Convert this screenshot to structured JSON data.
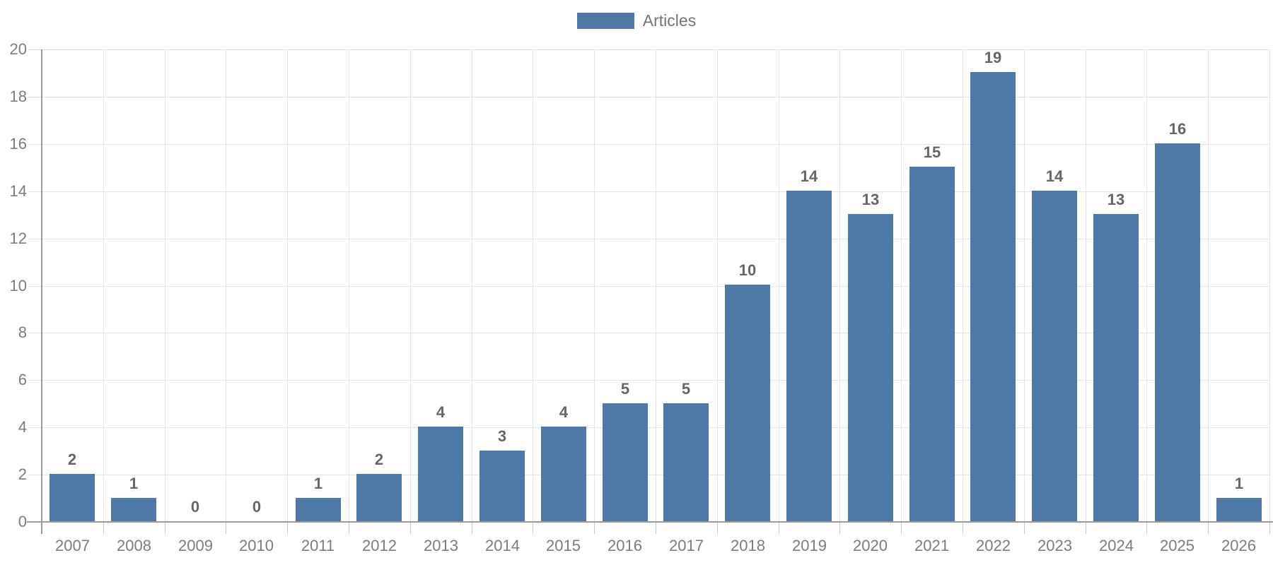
{
  "chart_data": {
    "type": "bar",
    "title": "",
    "categories": [
      "2007",
      "2008",
      "2009",
      "2010",
      "2011",
      "2012",
      "2013",
      "2014",
      "2015",
      "2016",
      "2017",
      "2018",
      "2019",
      "2020",
      "2021",
      "2022",
      "2023",
      "2024",
      "2025",
      "2026"
    ],
    "series": [
      {
        "name": "Articles",
        "color": "#4e79a7",
        "values": [
          2,
          1,
          0,
          0,
          1,
          2,
          4,
          3,
          4,
          5,
          5,
          10,
          14,
          13,
          15,
          19,
          14,
          13,
          16,
          1
        ]
      }
    ],
    "xlabel": "",
    "ylabel": "",
    "ylim": [
      0,
      20
    ],
    "y_ticks": [
      0,
      2,
      4,
      6,
      8,
      10,
      12,
      14,
      16,
      18,
      20
    ],
    "grid": true,
    "legend_position": "top-center",
    "value_labels": true
  },
  "legend": {
    "items": [
      {
        "label": "Articles",
        "color": "#4e79a7"
      }
    ]
  },
  "colors": {
    "bar": "#4e79a7",
    "grid_line": "#e3e3e3",
    "axis_line": "#9a9a9a",
    "tick": "#c9c9c9",
    "value_label": "#666666",
    "axis_label": "#7d7d7d",
    "legend_text": "#757575",
    "background": "#ffffff"
  }
}
